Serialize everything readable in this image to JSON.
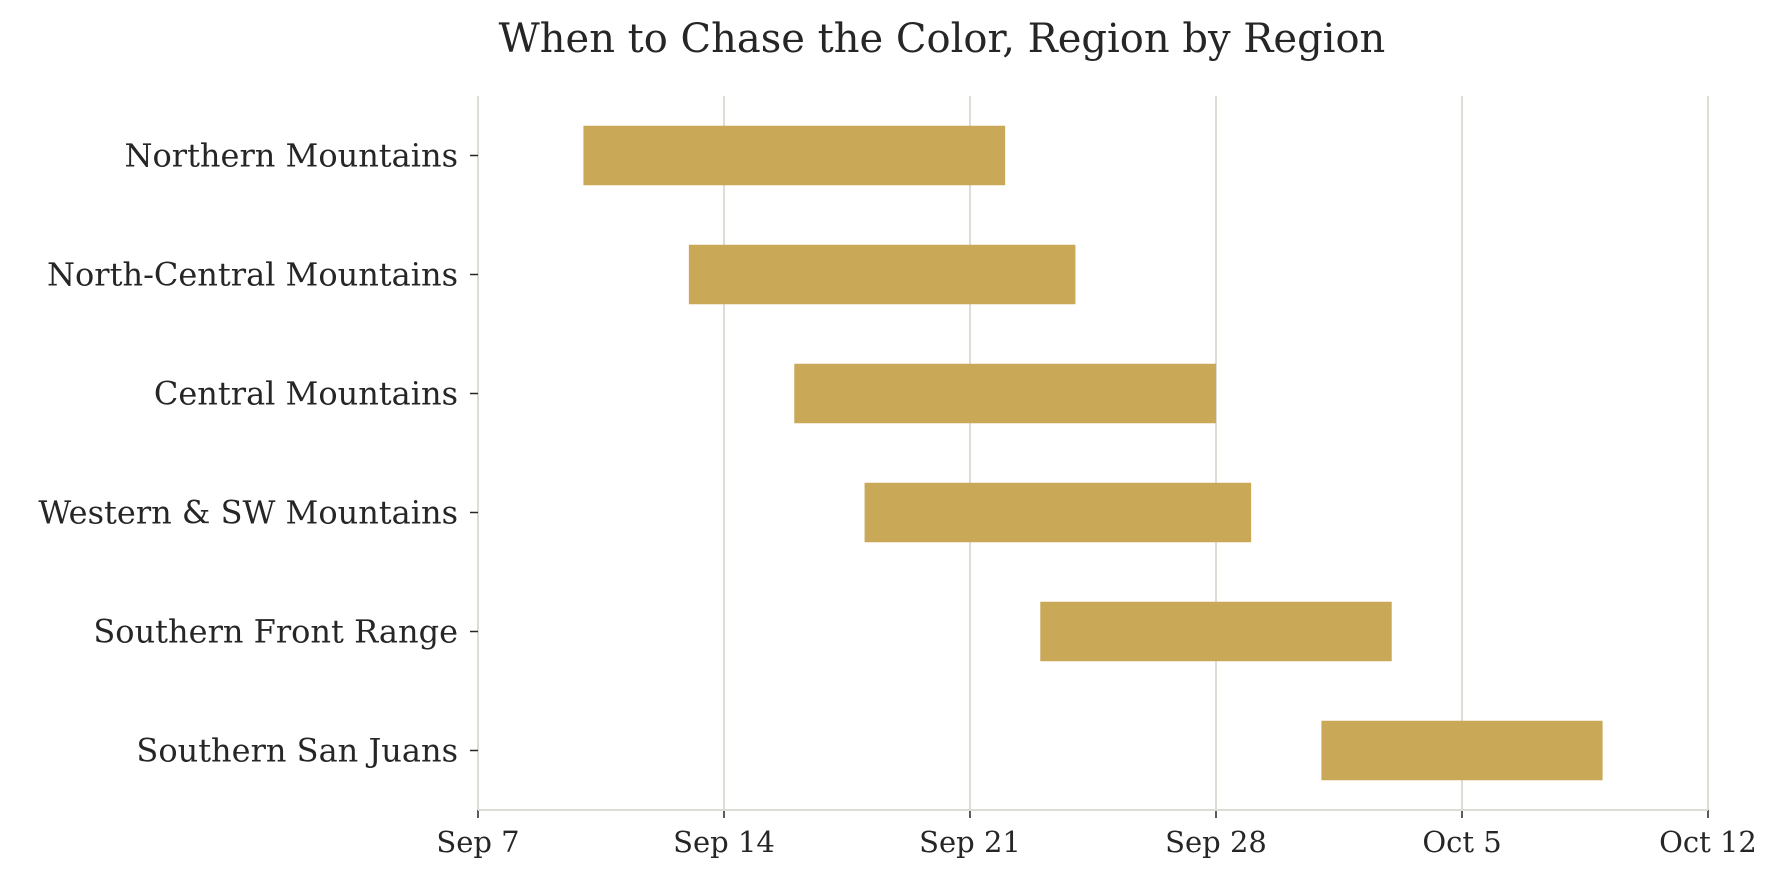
{
  "chart_data": {
    "type": "bar",
    "orientation": "horizontal",
    "title": "When to Chase the Color, Region by Region",
    "xlabel": "",
    "ylabel": "",
    "x_axis": {
      "type": "date",
      "range": [
        "Sep 7",
        "Oct 12"
      ],
      "ticks": [
        "Sep 7",
        "Sep 14",
        "Sep 21",
        "Sep 28",
        "Oct 5",
        "Oct 12"
      ]
    },
    "grid": {
      "x": true,
      "y": false
    },
    "legend": "none",
    "bar_color": "#C9A857",
    "grid_color": "#DDDDD5",
    "categories": [
      "Northern Mountains",
      "North-Central Mountains",
      "Central Mountains",
      "Western & SW Mountains",
      "Southern Front Range",
      "Southern San Juans"
    ],
    "series": [
      {
        "start": [
          "Sep 10",
          "Sep 13",
          "Sep 16",
          "Sep 18",
          "Sep 23",
          "Oct 1"
        ],
        "end": [
          "Sep 22",
          "Sep 24",
          "Sep 28",
          "Sep 29",
          "Oct 3",
          "Oct 9"
        ]
      }
    ]
  }
}
